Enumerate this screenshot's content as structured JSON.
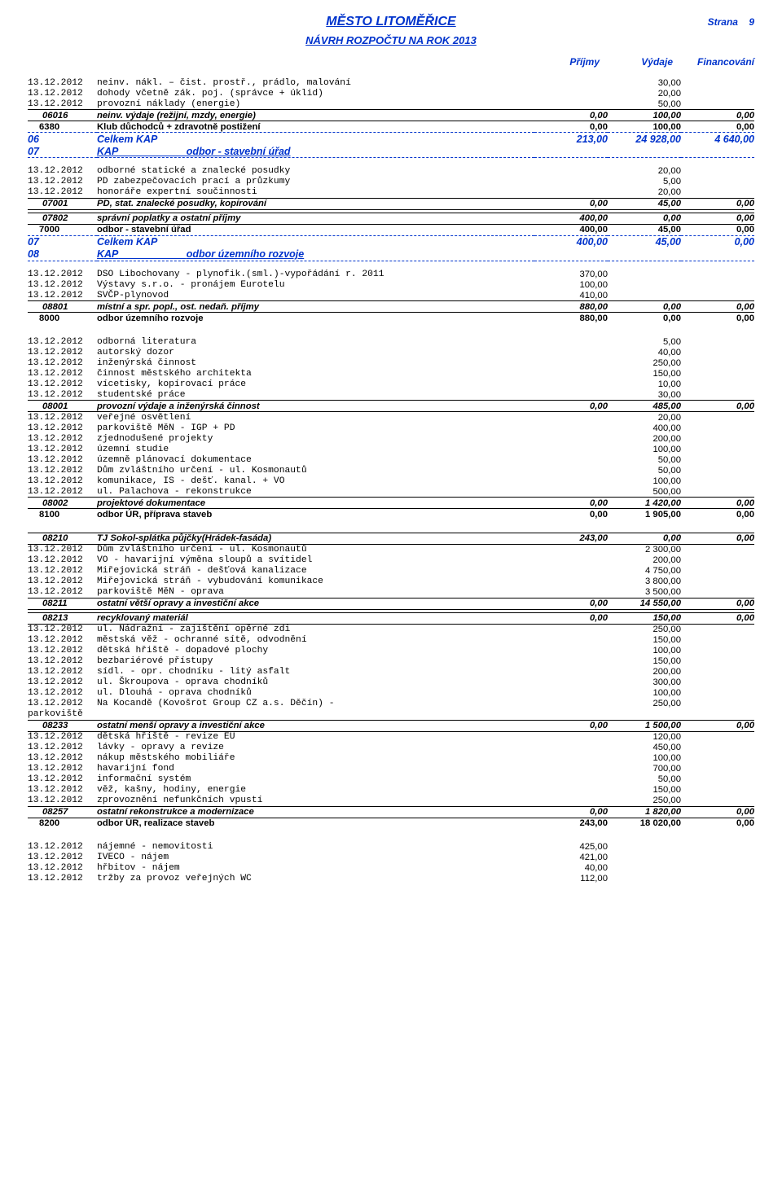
{
  "header": {
    "title": "MĚSTO LITOMĚŘICE",
    "subtitle": "NÁVRH ROZPOČTU NA ROK 2013",
    "strana_label": "Strana",
    "strana_num": "9",
    "col1": "Příjmy",
    "col2": "Výdaje",
    "col3": "Financování"
  },
  "block1": {
    "r": [
      {
        "d": "13.12.2012",
        "t": "neinv. nákl. – čist. prostř., prádlo, malování",
        "v2": "30,00"
      },
      {
        "d": "13.12.2012",
        "t": "dohody včetně zák. poj. (správce + úklid)",
        "v2": "20,00"
      },
      {
        "d": "13.12.2012",
        "t": "provozní náklady (energie)",
        "v2": "50,00"
      }
    ],
    "b1": {
      "code": "06016",
      "t": "neinv. výdaje (režijní, mzdy, energie)",
      "v1": "0,00",
      "v2": "100,00",
      "v3": "0,00"
    },
    "s1": {
      "code": "6380",
      "t": "Klub důchodců + zdravotně postižení",
      "v1": "0,00",
      "v2": "100,00",
      "v3": "0,00"
    },
    "celkem": {
      "c": "06",
      "label": "Celkem KAP",
      "v1": "213,00",
      "v2": "24 928,00",
      "v3": "4 640,00"
    },
    "kap": {
      "c": "07",
      "label": "KAP",
      "t": "odbor - stavební úřad"
    }
  },
  "block2": {
    "r": [
      {
        "d": "13.12.2012",
        "t": "odborné statické a znalecké posudky",
        "v2": "20,00"
      },
      {
        "d": "13.12.2012",
        "t": "PD zabezpečovacích prací a průzkumy",
        "v2": "5,00"
      },
      {
        "d": "13.12.2012",
        "t": "honoráře expertní součinnosti",
        "v2": "20,00"
      }
    ],
    "b1": {
      "code": "07001",
      "t": "PD, stat. znalecké posudky, kopírování",
      "v1": "0,00",
      "v2": "45,00",
      "v3": "0,00"
    },
    "b2": {
      "code": "07802",
      "t": "správní poplatky a ostatní příjmy",
      "v1": "400,00",
      "v2": "0,00",
      "v3": "0,00"
    },
    "s1": {
      "code": "7000",
      "t": "odbor - stavební úřad",
      "v1": "400,00",
      "v2": "45,00",
      "v3": "0,00"
    },
    "celkem": {
      "c": "07",
      "label": "Celkem KAP",
      "v1": "400,00",
      "v2": "45,00",
      "v3": "0,00"
    },
    "kap": {
      "c": "08",
      "label": "KAP",
      "t": "odbor územního rozvoje"
    }
  },
  "block3": {
    "r": [
      {
        "d": "13.12.2012",
        "t": "DSO Libochovany - plynofik.(sml.)-vypořádání r. 2011",
        "v1": "370,00"
      },
      {
        "d": "13.12.2012",
        "t": "Výstavy s.r.o. - pronájem Eurotelu",
        "v1": "100,00"
      },
      {
        "d": "13.12.2012",
        "t": "SVČP-plynovod",
        "v1": "410,00"
      }
    ],
    "b1": {
      "code": "08801",
      "t": "místní a spr. popl., ost. nedaň. příjmy",
      "v1": "880,00",
      "v2": "0,00",
      "v3": "0,00"
    },
    "s1": {
      "code": "8000",
      "t": "odbor územního rozvoje",
      "v1": "880,00",
      "v2": "0,00",
      "v3": "0,00"
    }
  },
  "block4": {
    "r1": [
      {
        "d": "13.12.2012",
        "t": "odborná literatura",
        "v2": "5,00"
      },
      {
        "d": "13.12.2012",
        "t": "autorský dozor",
        "v2": "40,00"
      },
      {
        "d": "13.12.2012",
        "t": "inženýrská činnost",
        "v2": "250,00"
      },
      {
        "d": "13.12.2012",
        "t": "činnost městského architekta",
        "v2": "150,00"
      },
      {
        "d": "13.12.2012",
        "t": "vícetisky, kopírovací práce",
        "v2": "10,00"
      },
      {
        "d": "13.12.2012",
        "t": "studentské práce",
        "v2": "30,00"
      }
    ],
    "b1": {
      "code": "08001",
      "t": "provozní výdaje a inženýrská činnost",
      "v1": "0,00",
      "v2": "485,00",
      "v3": "0,00"
    },
    "r2": [
      {
        "d": "13.12.2012",
        "t": "veřejné osvětlení",
        "v2": "20,00"
      },
      {
        "d": "13.12.2012",
        "t": "parkoviště MěN - IGP + PD",
        "v2": "400,00"
      },
      {
        "d": "13.12.2012",
        "t": "zjednodušené projekty",
        "v2": "200,00"
      },
      {
        "d": "13.12.2012",
        "t": "územní studie",
        "v2": "100,00"
      },
      {
        "d": "13.12.2012",
        "t": "územně plánovací dokumentace",
        "v2": "50,00"
      },
      {
        "d": "13.12.2012",
        "t": "Dům zvláštního určení - ul. Kosmonautů",
        "v2": "50,00"
      },
      {
        "d": "13.12.2012",
        "t": "komunikace, IS - dešť. kanal. + VO",
        "v2": "100,00"
      },
      {
        "d": "13.12.2012",
        "t": "ul. Palachova - rekonstrukce",
        "v2": "500,00"
      }
    ],
    "b2": {
      "code": "08002",
      "t": "projektové dokumentace",
      "v1": "0,00",
      "v2": "1 420,00",
      "v3": "0,00"
    },
    "s1": {
      "code": "8100",
      "t": "odbor ÚR, příprava staveb",
      "v1": "0,00",
      "v2": "1 905,00",
      "v3": "0,00"
    }
  },
  "block5": {
    "b0": {
      "code": "08210",
      "t": "TJ Sokol-splátka půjčky(Hrádek-fasáda)",
      "v1": "243,00",
      "v2": "0,00",
      "v3": "0,00"
    },
    "r1": [
      {
        "d": "13.12.2012",
        "t": "Dům zvláštního určení - ul. Kosmonautů",
        "v2": "2 300,00"
      },
      {
        "d": "13.12.2012",
        "t": "VO - havarijní výměna sloupů a svítidel",
        "v2": "200,00"
      },
      {
        "d": "13.12.2012",
        "t": "Miřejovická stráň - dešťová kanalizace",
        "v2": "4 750,00"
      },
      {
        "d": "13.12.2012",
        "t": "Miřejovická stráň - vybudování komunikace",
        "v2": "3 800,00"
      },
      {
        "d": "13.12.2012",
        "t": "parkoviště MěN - oprava",
        "v2": "3 500,00"
      }
    ],
    "b1": {
      "code": "08211",
      "t": "ostatní větší opravy a investiční akce",
      "v1": "0,00",
      "v2": "14 550,00",
      "v3": "0,00"
    },
    "b2": {
      "code": "08213",
      "t": "recyklovaný materiál",
      "v1": "0,00",
      "v2": "150,00",
      "v3": "0,00"
    },
    "r2": [
      {
        "d": "13.12.2012",
        "t": "ul. Nádražní - zajištění opěrné zdi",
        "v2": "250,00"
      },
      {
        "d": "13.12.2012",
        "t": "městská věž - ochranné sítě, odvodnění",
        "v2": "150,00"
      },
      {
        "d": "13.12.2012",
        "t": "dětská hřiště - dopadové plochy",
        "v2": "100,00"
      },
      {
        "d": "13.12.2012",
        "t": "bezbariérové přístupy",
        "v2": "150,00"
      },
      {
        "d": "13.12.2012",
        "t": "sídl. - opr. chodníku - litý asfalt",
        "v2": "200,00"
      },
      {
        "d": "13.12.2012",
        "t": "ul. Škroupova - oprava chodníků",
        "v2": "300,00"
      },
      {
        "d": "13.12.2012",
        "t": "ul. Dlouhá - oprava chodníků",
        "v2": "100,00"
      },
      {
        "d": "13.12.2012",
        "t": "Na Kocandě (Kovošrot Group CZ a.s. Děčín) -",
        "v2": "250,00"
      },
      {
        "d": "parkoviště",
        "t": ""
      }
    ],
    "b3": {
      "code": "08233",
      "t": "ostatní menší opravy a investiční akce",
      "v1": "0,00",
      "v2": "1 500,00",
      "v3": "0,00"
    },
    "r3": [
      {
        "d": "13.12.2012",
        "t": "dětská hřiště - revize EU",
        "v2": "120,00"
      },
      {
        "d": "13.12.2012",
        "t": "lávky - opravy a revize",
        "v2": "450,00"
      },
      {
        "d": "13.12.2012",
        "t": "nákup městského mobiliáře",
        "v2": "100,00"
      },
      {
        "d": "13.12.2012",
        "t": "havarijní fond",
        "v2": "700,00"
      },
      {
        "d": "13.12.2012",
        "t": "informační systém",
        "v2": "50,00"
      },
      {
        "d": "13.12.2012",
        "t": "věž, kašny, hodiny, energie",
        "v2": "150,00"
      },
      {
        "d": "13.12.2012",
        "t": "zprovoznění nefunkčních vpustí",
        "v2": "250,00"
      }
    ],
    "b4": {
      "code": "08257",
      "t": "ostatní rekonstrukce a modernizace",
      "v1": "0,00",
      "v2": "1 820,00",
      "v3": "0,00"
    },
    "s1": {
      "code": "8200",
      "t": "odbor ÚR, realizace staveb",
      "v1": "243,00",
      "v2": "18 020,00",
      "v3": "0,00"
    }
  },
  "block6": {
    "r": [
      {
        "d": "13.12.2012",
        "t": "nájemné - nemovitosti",
        "v1": "425,00"
      },
      {
        "d": "13.12.2012",
        "t": "IVECO - nájem",
        "v1": "421,00"
      },
      {
        "d": "13.12.2012",
        "t": "hřbitov - nájem",
        "v1": "40,00"
      },
      {
        "d": "13.12.2012",
        "t": "tržby za provoz veřejných WC",
        "v1": "112,00"
      }
    ]
  }
}
